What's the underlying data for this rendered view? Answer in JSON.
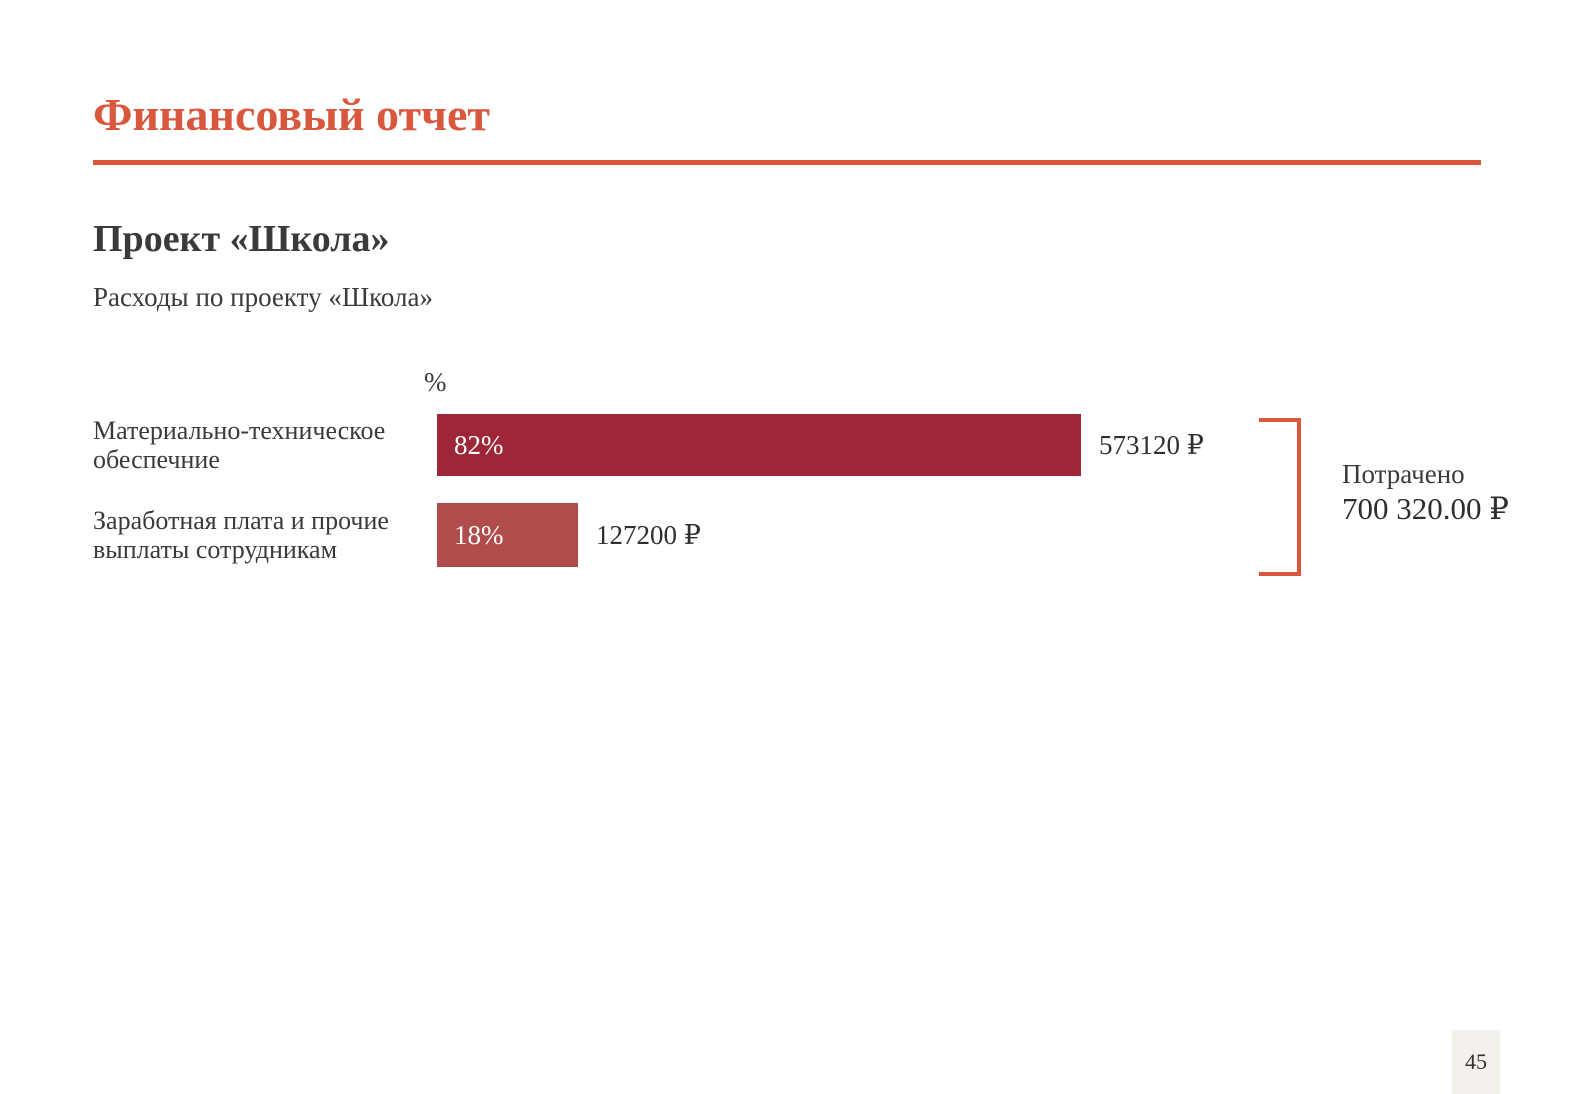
{
  "slide": {
    "title": "Финансовый отчет",
    "heading": "Проект «Школа»",
    "subheading": "Расходы по проекту «Школа»",
    "page_number": "45"
  },
  "chart_data": {
    "type": "bar",
    "orientation": "horizontal",
    "title": "Расходы по проекту «Школа»",
    "axis_unit_label": "%",
    "categories": [
      "Материально-техническое обеспечние",
      "Заработная плата и прочие выплаты сотрудникам"
    ],
    "values": [
      82,
      18
    ],
    "bar_percent_labels": [
      "82%",
      "18%"
    ],
    "value_labels": [
      "573120 ₽",
      "127200 ₽"
    ],
    "amounts_rub": [
      573120,
      127200
    ],
    "xlim": [
      0,
      100
    ],
    "bar_colors": [
      "#9d2637",
      "#b14c4d"
    ],
    "grid": false,
    "legend": false
  },
  "summary": {
    "label": "Потрачено",
    "value": "700 320.00 ₽",
    "amount_rub": 700320.0
  },
  "colors": {
    "accent": "#d9573c",
    "bar_primary": "#9d2637",
    "bar_secondary": "#b14c4d",
    "text": "#3b3b3b",
    "page_number_bg": "#f4f1ec"
  }
}
